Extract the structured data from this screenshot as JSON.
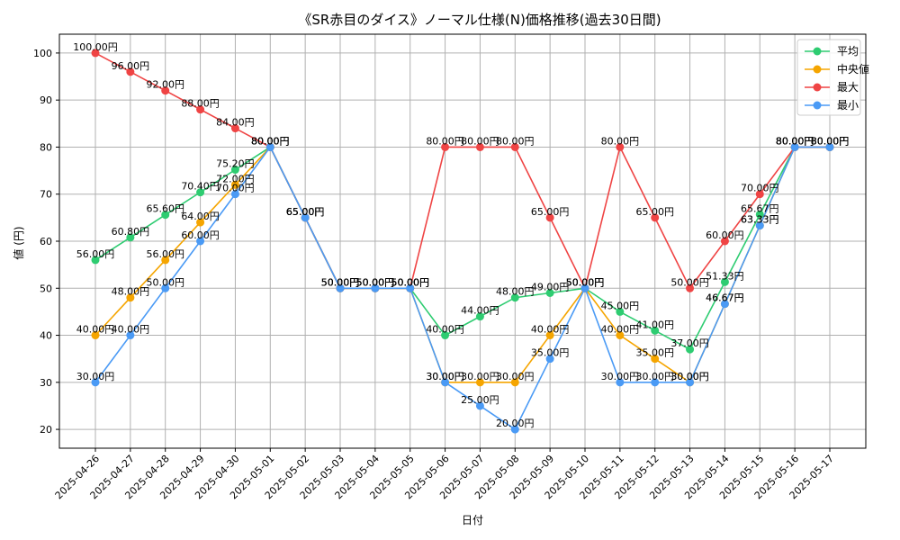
{
  "chart_data": {
    "type": "line",
    "title": "《SR赤目のダイス》ノーマル仕様(N)価格推移(過去30日間)",
    "xlabel": "日付",
    "ylabel": "値 (円)",
    "ylim": [
      16,
      104
    ],
    "yticks": [
      20,
      30,
      40,
      50,
      60,
      70,
      80,
      90,
      100
    ],
    "grid": true,
    "legend_position": "top-right",
    "x": [
      "2025-04-26",
      "2025-04-27",
      "2025-04-28",
      "2025-04-29",
      "2025-04-30",
      "2025-05-01",
      "2025-05-02",
      "2025-05-03",
      "2025-05-04",
      "2025-05-05",
      "2025-05-06",
      "2025-05-07",
      "2025-05-08",
      "2025-05-09",
      "2025-05-10",
      "2025-05-11",
      "2025-05-12",
      "2025-05-13",
      "2025-05-14",
      "2025-05-15",
      "2025-05-16",
      "2025-05-17"
    ],
    "series": [
      {
        "name": "平均",
        "color": "#2ecc71",
        "values": [
          56.0,
          60.8,
          65.6,
          70.4,
          75.2,
          80.0,
          65.0,
          50.0,
          50.0,
          50.0,
          40.0,
          44.0,
          48.0,
          49.0,
          50.0,
          45.0,
          41.0,
          37.0,
          51.33,
          65.67,
          80.0,
          80.0
        ]
      },
      {
        "name": "中央値",
        "color": "#f5a500",
        "values": [
          40.0,
          48.0,
          56.0,
          64.0,
          72.0,
          80.0,
          65.0,
          50.0,
          50.0,
          50.0,
          30.0,
          30.0,
          30.0,
          40.0,
          50.0,
          40.0,
          35.0,
          30.0,
          46.67,
          63.33,
          80.0,
          80.0
        ]
      },
      {
        "name": "最大",
        "color": "#ef4444",
        "values": [
          100.0,
          96.0,
          92.0,
          88.0,
          84.0,
          80.0,
          65.0,
          50.0,
          50.0,
          50.0,
          80.0,
          80.0,
          80.0,
          65.0,
          50.0,
          80.0,
          65.0,
          50.0,
          60.0,
          70.0,
          80.0,
          80.0
        ]
      },
      {
        "name": "最小",
        "color": "#4a9af5",
        "values": [
          30.0,
          40.0,
          50.0,
          60.0,
          70.0,
          80.0,
          65.0,
          50.0,
          50.0,
          50.0,
          30.0,
          25.0,
          20.0,
          35.0,
          50.0,
          30.0,
          30.0,
          30.0,
          46.67,
          63.33,
          80.0,
          80.0
        ]
      }
    ],
    "value_suffix": "円"
  }
}
